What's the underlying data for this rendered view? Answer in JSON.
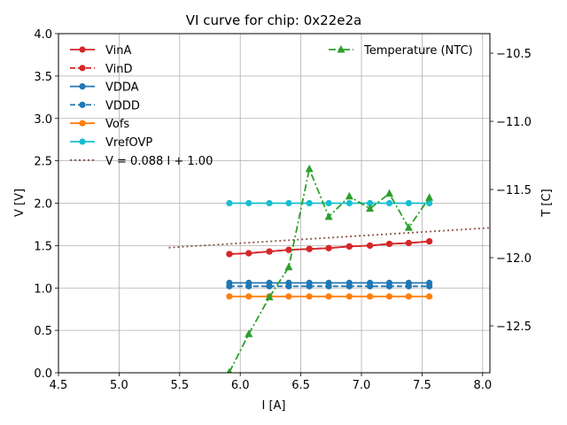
{
  "chart_data": {
    "type": "line",
    "title": "VI curve for chip: 0x22e2a",
    "xlabel": "I [A]",
    "ylabel": "V [V]",
    "y2label": "T [C]",
    "xlim": [
      4.5,
      8.06
    ],
    "ylim": [
      0.0,
      4.0
    ],
    "y2lim": [
      -12.844,
      -10.357
    ],
    "xticks": [
      "4.5",
      "5.0",
      "5.5",
      "6.0",
      "6.5",
      "7.0",
      "7.5",
      "8.0"
    ],
    "yticks": [
      "0.0",
      "0.5",
      "1.0",
      "1.5",
      "2.0",
      "2.5",
      "3.0",
      "3.5",
      "4.0"
    ],
    "y2ticks": [
      "−10.5",
      "−11.0",
      "−11.5",
      "−12.0",
      "−12.5"
    ],
    "grid": true,
    "x": [
      5.91,
      6.07,
      6.24,
      6.4,
      6.57,
      6.73,
      6.9,
      7.07,
      7.23,
      7.39,
      7.56
    ],
    "series": [
      {
        "name": "VinA",
        "axis": "left",
        "color": "#d62728",
        "style": "solid",
        "marker": "circle",
        "values": [
          1.4,
          1.41,
          1.43,
          1.45,
          1.46,
          1.47,
          1.49,
          1.5,
          1.52,
          1.53,
          1.55
        ]
      },
      {
        "name": "VinD",
        "axis": "left",
        "color": "#d62728",
        "style": "dashed",
        "marker": "circle",
        "values": [
          1.4,
          1.41,
          1.43,
          1.45,
          1.46,
          1.47,
          1.49,
          1.5,
          1.52,
          1.53,
          1.55
        ]
      },
      {
        "name": "VDDA",
        "axis": "left",
        "color": "#1f77b4",
        "style": "solid",
        "marker": "circle",
        "values": [
          1.06,
          1.06,
          1.06,
          1.06,
          1.06,
          1.06,
          1.06,
          1.06,
          1.06,
          1.06,
          1.06
        ]
      },
      {
        "name": "VDDD",
        "axis": "left",
        "color": "#1f77b4",
        "style": "dashed",
        "marker": "circle",
        "values": [
          1.02,
          1.02,
          1.02,
          1.02,
          1.02,
          1.02,
          1.02,
          1.02,
          1.02,
          1.02,
          1.02
        ]
      },
      {
        "name": "Vofs",
        "axis": "left",
        "color": "#ff7f0e",
        "style": "solid",
        "marker": "circle",
        "values": [
          0.9,
          0.9,
          0.9,
          0.9,
          0.9,
          0.9,
          0.9,
          0.9,
          0.9,
          0.9,
          0.9
        ]
      },
      {
        "name": "VrefOVP",
        "axis": "left",
        "color": "#17becf",
        "style": "solid",
        "marker": "circle",
        "values": [
          2.0,
          2.0,
          2.0,
          2.0,
          2.0,
          2.0,
          2.0,
          2.0,
          2.0,
          2.0,
          2.0
        ]
      },
      {
        "name": "Temperature (NTC)",
        "axis": "right",
        "color": "#2ca02c",
        "style": "dashdot",
        "marker": "triangle",
        "values": [
          -12.84,
          -12.56,
          -12.29,
          -12.07,
          -11.35,
          -11.7,
          -11.55,
          -11.64,
          -11.53,
          -11.78,
          -11.56
        ]
      }
    ],
    "fit": {
      "label": "V = 0.088 I + 1.00",
      "slope": 0.088,
      "intercept": 1.0,
      "x_range": [
        5.41,
        8.06
      ],
      "color": "#8c564b",
      "style": "dotted"
    },
    "legend_left": [
      "VinA",
      "VinD",
      "VDDA",
      "VDDD",
      "Vofs",
      "VrefOVP",
      "V = 0.088 I + 1.00"
    ],
    "legend_right": [
      "Temperature (NTC)"
    ],
    "legend_placement": "upper-left and upper-right"
  }
}
